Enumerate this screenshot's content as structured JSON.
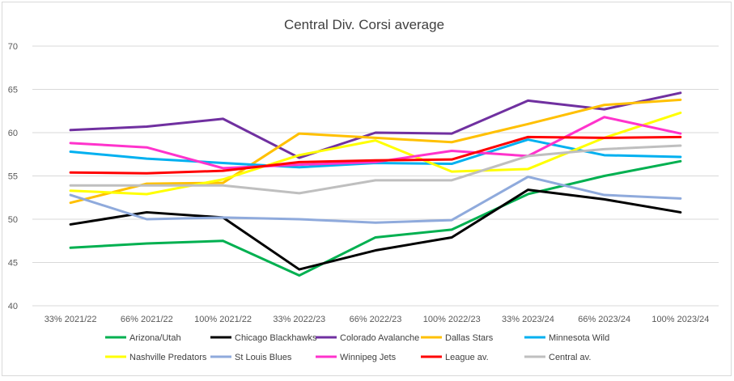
{
  "chart_data": {
    "type": "line",
    "title": "Central Div. Corsi average",
    "xlabel": "",
    "ylabel": "",
    "ylim": [
      40,
      70
    ],
    "yticks": [
      40,
      45,
      50,
      55,
      60,
      65,
      70
    ],
    "grid": true,
    "legend_position": "bottom",
    "categories": [
      "33% 2021/22",
      "66% 2021/22",
      "100% 2021/22",
      "33% 2022/23",
      "66% 2022/23",
      "100% 2022/23",
      "33% 2023/24",
      "66% 2023/24",
      "100% 2023/24"
    ],
    "series": [
      {
        "name": "Arizona/Utah",
        "color": "#00b050",
        "values": [
          46.7,
          47.2,
          47.5,
          43.5,
          47.9,
          48.8,
          52.9,
          55.0,
          56.7
        ]
      },
      {
        "name": "Chicago Blackhawks",
        "color": "#000000",
        "values": [
          49.4,
          50.8,
          50.2,
          44.2,
          46.4,
          47.9,
          53.4,
          52.3,
          50.8
        ]
      },
      {
        "name": "Colorado Avalanche",
        "color": "#7030a0",
        "values": [
          60.3,
          60.7,
          61.6,
          57.1,
          60.0,
          59.9,
          63.7,
          62.7,
          64.6
        ]
      },
      {
        "name": "Dallas Stars",
        "color": "#ffc000",
        "values": [
          51.9,
          54.1,
          54.2,
          59.9,
          59.4,
          58.9,
          61.0,
          63.2,
          63.8
        ]
      },
      {
        "name": "Minnesota Wild",
        "color": "#00b0f0",
        "values": [
          57.8,
          57.0,
          56.5,
          56.0,
          56.5,
          56.4,
          59.2,
          57.4,
          57.2
        ]
      },
      {
        "name": "Nashville Predators",
        "color": "#ffff00",
        "values": [
          53.3,
          52.9,
          54.6,
          57.4,
          59.1,
          55.5,
          55.8,
          59.4,
          62.3
        ]
      },
      {
        "name": "St Louis Blues",
        "color": "#8faadc",
        "values": [
          52.8,
          50.0,
          50.2,
          50.0,
          49.6,
          49.9,
          54.9,
          52.8,
          52.4
        ]
      },
      {
        "name": "Winnipeg Jets",
        "color": "#ff33cc",
        "values": [
          58.8,
          58.3,
          55.9,
          56.3,
          56.6,
          57.9,
          57.3,
          61.8,
          59.9
        ]
      },
      {
        "name": "League av.",
        "color": "#ff0000",
        "values": [
          55.4,
          55.3,
          55.6,
          56.6,
          56.8,
          56.9,
          59.5,
          59.4,
          59.5
        ]
      },
      {
        "name": "Central av.",
        "color": "#bfbfbf",
        "values": [
          53.9,
          53.9,
          53.9,
          53.0,
          54.5,
          54.5,
          57.3,
          58.1,
          58.5
        ]
      }
    ]
  }
}
